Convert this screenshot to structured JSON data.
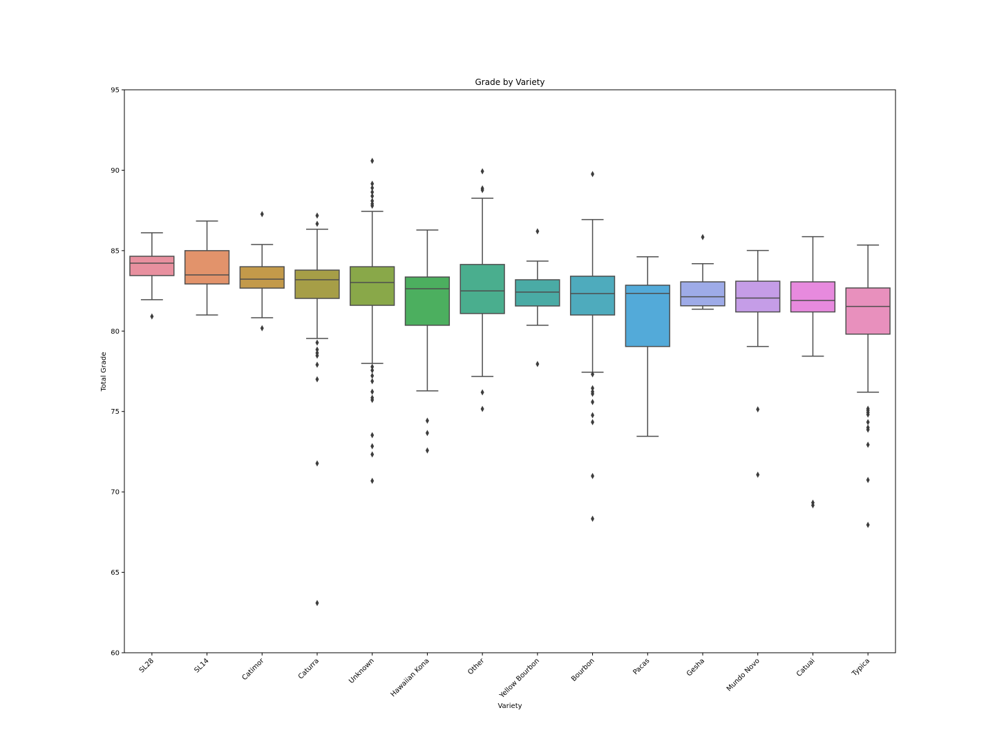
{
  "chart_data": {
    "type": "box",
    "title": "Grade by Variety",
    "xlabel": "Variety",
    "ylabel": "Total Grade",
    "ylim": [
      60,
      95
    ],
    "yticks": [
      60,
      65,
      70,
      75,
      80,
      85,
      90,
      95
    ],
    "grid": false,
    "legend": "none",
    "xtick_rotation": 45,
    "categories": [
      "SL28",
      "SL14",
      "Catimor",
      "Caturra",
      "Unknown",
      "Hawaiian Kona",
      "Other",
      "Yellow Bourbon",
      "Bourbon",
      "Pacas",
      "Gesha",
      "Mundo Novo",
      "Catuai",
      "Typica"
    ],
    "series": [
      {
        "name": "SL28",
        "color": "#e8909f",
        "whisker_low": 81.95,
        "q1": 83.45,
        "median": 84.22,
        "q3": 84.65,
        "whisker_high": 86.11,
        "outliers": [
          80.91
        ]
      },
      {
        "name": "SL14",
        "color": "#e2936b",
        "whisker_low": 81.0,
        "q1": 82.93,
        "median": 83.49,
        "q3": 85.0,
        "whisker_high": 86.84,
        "outliers": []
      },
      {
        "name": "Catimor",
        "color": "#c39a4a",
        "whisker_low": 80.83,
        "q1": 82.67,
        "median": 83.23,
        "q3": 84.0,
        "whisker_high": 85.38,
        "outliers": [
          87.27,
          80.18
        ]
      },
      {
        "name": "Caturra",
        "color": "#a69e47",
        "whisker_low": 79.54,
        "q1": 82.03,
        "median": 83.19,
        "q3": 83.79,
        "whisker_high": 86.33,
        "outliers": [
          87.18,
          86.67,
          79.28,
          78.85,
          78.64,
          78.47,
          77.91,
          77.0,
          71.77,
          63.09
        ]
      },
      {
        "name": "Unknown",
        "color": "#89a849",
        "whisker_low": 77.99,
        "q1": 81.6,
        "median": 83.02,
        "q3": 84.0,
        "whisker_high": 87.44,
        "outliers": [
          90.58,
          89.16,
          88.9,
          88.64,
          88.39,
          88.09,
          87.91,
          87.79,
          77.78,
          77.56,
          77.22,
          76.88,
          76.23,
          75.85,
          75.72,
          73.53,
          72.84,
          72.33,
          70.69
        ]
      },
      {
        "name": "Hawaiian Kona",
        "color": "#4caf5f",
        "whisker_low": 76.28,
        "q1": 80.36,
        "median": 82.63,
        "q3": 83.36,
        "whisker_high": 86.28,
        "outliers": [
          74.43,
          73.66,
          72.58
        ]
      },
      {
        "name": "Other",
        "color": "#4aae8e",
        "whisker_low": 77.18,
        "q1": 81.09,
        "median": 82.5,
        "q3": 84.14,
        "whisker_high": 88.26,
        "outliers": [
          89.93,
          88.87,
          88.77,
          76.19,
          75.16
        ]
      },
      {
        "name": "Yellow Bourbon",
        "color": "#4aaba5",
        "whisker_low": 80.36,
        "q1": 81.56,
        "median": 82.42,
        "q3": 83.19,
        "whisker_high": 84.35,
        "outliers": [
          86.2,
          77.95
        ]
      },
      {
        "name": "Bourbon",
        "color": "#4eabbd",
        "whisker_low": 77.44,
        "q1": 81.0,
        "median": 82.33,
        "q3": 83.41,
        "whisker_high": 86.93,
        "outliers": [
          89.76,
          77.31,
          76.45,
          76.23,
          76.1,
          75.59,
          74.77,
          74.34,
          70.99,
          68.33
        ]
      },
      {
        "name": "Pacas",
        "color": "#53aad9",
        "whisker_low": 73.46,
        "q1": 79.04,
        "median": 82.34,
        "q3": 82.85,
        "whisker_high": 84.62,
        "outliers": []
      },
      {
        "name": "Gesha",
        "color": "#9eabe8",
        "whisker_low": 81.36,
        "q1": 81.57,
        "median": 82.13,
        "q3": 83.06,
        "whisker_high": 84.19,
        "outliers": [
          85.84
        ]
      },
      {
        "name": "Mundo Novo",
        "color": "#c59de7",
        "whisker_low": 79.04,
        "q1": 81.19,
        "median": 82.05,
        "q3": 83.1,
        "whisker_high": 85.01,
        "outliers": [
          75.13,
          71.07
        ]
      },
      {
        "name": "Catuai",
        "color": "#e78ade",
        "whisker_low": 78.44,
        "q1": 81.19,
        "median": 81.9,
        "q3": 83.06,
        "whisker_high": 85.87,
        "outliers": [
          69.33,
          69.17
        ]
      },
      {
        "name": "Typica",
        "color": "#e890bd",
        "whisker_low": 76.2,
        "q1": 79.81,
        "median": 81.53,
        "q3": 82.68,
        "whisker_high": 85.35,
        "outliers": [
          75.17,
          75.07,
          74.94,
          74.81,
          74.34,
          74.0,
          73.87,
          72.93,
          70.74,
          67.95
        ]
      }
    ]
  }
}
